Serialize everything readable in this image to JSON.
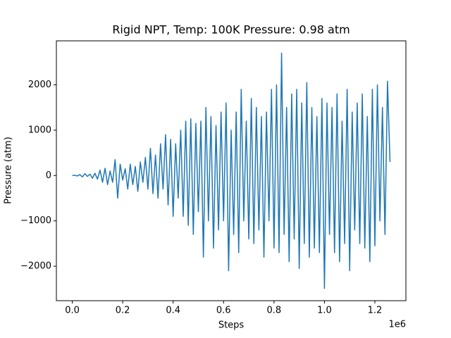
{
  "chart_data": {
    "type": "line",
    "title": "Rigid NPT, Temp: 100K Pressure: 0.98 atm",
    "xlabel": "Steps",
    "ylabel": "Pressure (atm)",
    "x_offset_label": "1e6",
    "color": "#1f77b4",
    "x": [
      0,
      10000,
      20000,
      30000,
      40000,
      50000,
      60000,
      70000,
      80000,
      90000,
      100000,
      110000,
      120000,
      130000,
      140000,
      150000,
      160000,
      170000,
      180000,
      190000,
      200000,
      210000,
      220000,
      230000,
      240000,
      250000,
      260000,
      270000,
      280000,
      290000,
      300000,
      310000,
      320000,
      330000,
      340000,
      350000,
      360000,
      370000,
      380000,
      390000,
      400000,
      410000,
      420000,
      430000,
      440000,
      450000,
      460000,
      470000,
      480000,
      490000,
      500000,
      510000,
      520000,
      530000,
      540000,
      550000,
      560000,
      570000,
      580000,
      590000,
      600000,
      610000,
      620000,
      630000,
      640000,
      650000,
      660000,
      670000,
      680000,
      690000,
      700000,
      710000,
      720000,
      730000,
      740000,
      750000,
      760000,
      770000,
      780000,
      790000,
      800000,
      810000,
      820000,
      830000,
      840000,
      850000,
      860000,
      870000,
      880000,
      890000,
      900000,
      910000,
      920000,
      930000,
      940000,
      950000,
      960000,
      970000,
      980000,
      990000,
      1000000,
      1010000,
      1020000,
      1030000,
      1040000,
      1050000,
      1060000,
      1070000,
      1080000,
      1090000,
      1100000,
      1110000,
      1120000,
      1130000,
      1140000,
      1150000,
      1160000,
      1170000,
      1180000,
      1190000,
      1200000,
      1210000,
      1220000,
      1230000,
      1240000,
      1250000,
      1260000
    ],
    "values": [
      0,
      5,
      -10,
      20,
      -30,
      40,
      -20,
      30,
      -60,
      50,
      -80,
      120,
      -150,
      160,
      -200,
      100,
      -150,
      350,
      -500,
      250,
      -100,
      150,
      -300,
      250,
      -200,
      200,
      -350,
      300,
      -150,
      400,
      -300,
      600,
      -400,
      450,
      -500,
      700,
      -300,
      900,
      -650,
      800,
      -900,
      700,
      -500,
      1000,
      -900,
      1200,
      -1100,
      1250,
      -1300,
      1150,
      -800,
      1200,
      -1800,
      1500,
      -1000,
      1300,
      -1600,
      1100,
      -1200,
      1400,
      -1000,
      1600,
      -2100,
      1000,
      -1300,
      1400,
      -1700,
      1900,
      -1000,
      1200,
      -1400,
      1700,
      -1500,
      1500,
      -1200,
      1300,
      -1800,
      1400,
      -1000,
      1900,
      -1600,
      2000,
      -1700,
      2700,
      -1300,
      1500,
      -1900,
      1800,
      -1400,
      1900,
      -2050,
      1600,
      -1500,
      2050,
      -1800,
      1500,
      -1600,
      1300,
      -1700,
      1700,
      -2490,
      1600,
      -1300,
      1500,
      -1700,
      1800,
      -1900,
      1200,
      -1500,
      1900,
      -2100,
      1400,
      -1200,
      1600,
      -1500,
      1800,
      -1600,
      1300,
      -1900,
      1900,
      -1550,
      2000,
      -1000,
      1500,
      -1300,
      2080,
      300
    ],
    "xlim": [
      -63000,
      1323000
    ],
    "ylim": [
      -2760,
      2970
    ],
    "xticks": [
      {
        "value": 0,
        "label": "0.0"
      },
      {
        "value": 200000,
        "label": "0.2"
      },
      {
        "value": 400000,
        "label": "0.4"
      },
      {
        "value": 600000,
        "label": "0.6"
      },
      {
        "value": 800000,
        "label": "0.8"
      },
      {
        "value": 1000000,
        "label": "1.0"
      },
      {
        "value": 1200000,
        "label": "1.2"
      }
    ],
    "yticks": [
      {
        "value": -2000,
        "label": "−2000"
      },
      {
        "value": -1000,
        "label": "−1000"
      },
      0,
      1000,
      2000
    ]
  }
}
